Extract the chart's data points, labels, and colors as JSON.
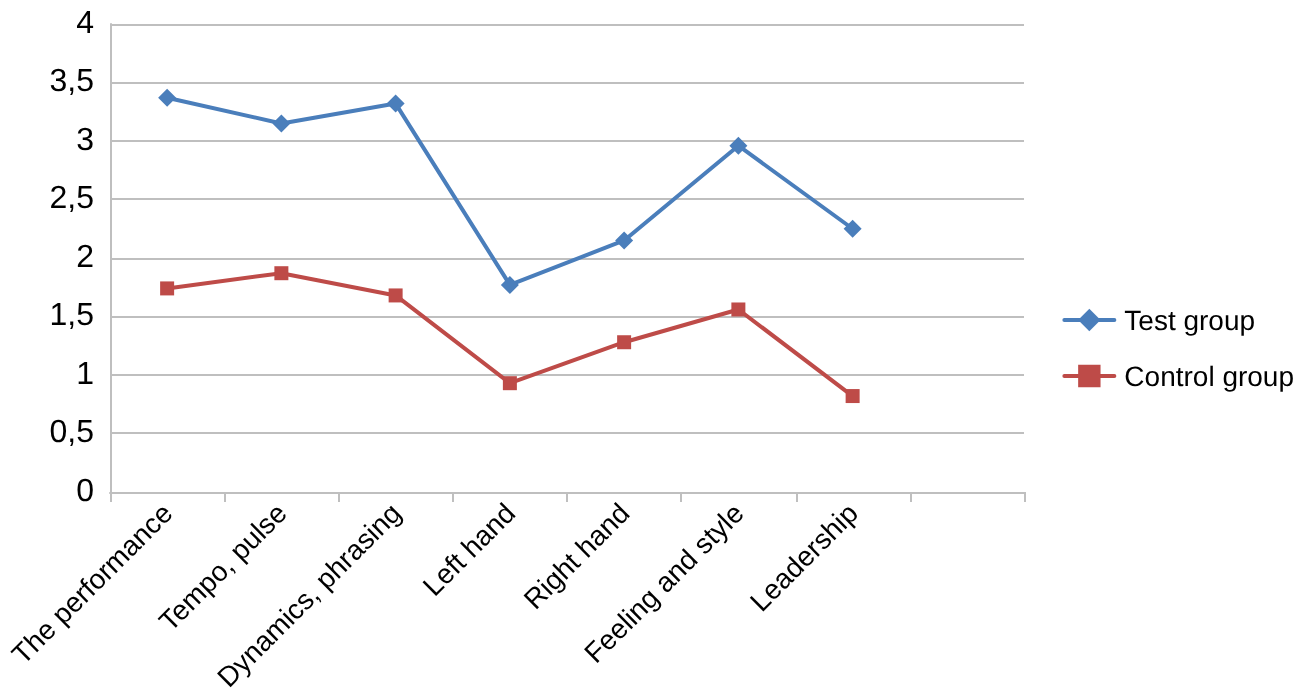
{
  "chart_data": {
    "type": "line",
    "categories": [
      "The performance",
      "Tempo, pulse",
      "Dynamics, phrasing",
      "Left hand",
      "Right hand",
      "Feeling and style",
      "Leadership",
      null
    ],
    "series": [
      {
        "name": "Test group",
        "color": "#4a7ebb",
        "marker": "diamond",
        "values": [
          3.37,
          3.15,
          3.32,
          1.77,
          2.15,
          2.96,
          2.25,
          null
        ]
      },
      {
        "name": "Control group",
        "color": "#be4b48",
        "marker": "square",
        "values": [
          1.74,
          1.87,
          1.68,
          0.93,
          1.28,
          1.56,
          0.82,
          null
        ]
      }
    ],
    "ylim": [
      0,
      4
    ],
    "yticks": [
      {
        "value": 0,
        "label": "0"
      },
      {
        "value": 0.5,
        "label": "0,5"
      },
      {
        "value": 1,
        "label": "1"
      },
      {
        "value": 1.5,
        "label": "1,5"
      },
      {
        "value": 2,
        "label": "2"
      },
      {
        "value": 2.5,
        "label": "2,5"
      },
      {
        "value": 3,
        "label": "3"
      },
      {
        "value": 3.5,
        "label": "3,5"
      },
      {
        "value": 4,
        "label": "4"
      }
    ],
    "grid": "y",
    "legend": "right",
    "line_style": "solid"
  }
}
